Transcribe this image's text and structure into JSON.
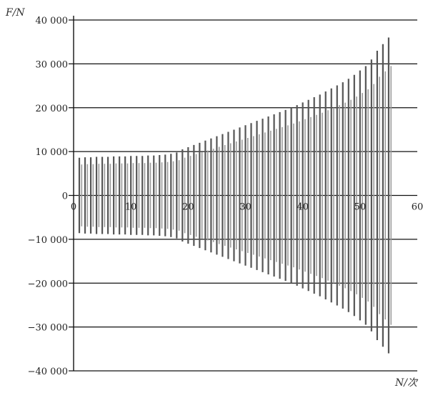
{
  "chart_data": {
    "type": "line",
    "xlabel": "N/次",
    "ylabel": "F/N",
    "xlim": [
      0,
      60
    ],
    "ylim": [
      -40000,
      40000
    ],
    "x_ticks": [
      0,
      10,
      20,
      30,
      40,
      50,
      60
    ],
    "x_tick_labels": [
      "0",
      "10",
      "20",
      "30",
      "40",
      "50",
      "60"
    ],
    "y_ticks": [
      40000,
      30000,
      20000,
      10000,
      0,
      -10000,
      -20000,
      -30000,
      -40000
    ],
    "y_tick_labels": [
      "40 000",
      "30 000",
      "20 000",
      "10 000",
      "0",
      "−10 000",
      "−20 000",
      "−30 000",
      "−40 000"
    ],
    "grid": "horizontal",
    "series": [
      {
        "cycles": [
          1,
          2,
          3,
          4,
          5,
          6,
          7,
          8,
          9,
          10,
          11,
          12,
          13,
          14,
          15,
          16,
          17,
          18,
          19,
          20,
          21,
          22,
          23,
          24,
          25,
          26,
          27,
          28,
          29,
          30,
          31,
          32,
          33,
          34,
          35,
          36,
          37,
          38,
          39,
          40,
          41,
          42,
          43,
          44,
          45,
          46,
          47,
          48,
          49,
          50,
          51,
          52,
          53,
          54,
          55
        ],
        "peak_positive": [
          8600,
          8700,
          8700,
          8800,
          8800,
          8800,
          8900,
          8900,
          8900,
          9000,
          9000,
          9000,
          9100,
          9100,
          9200,
          9300,
          9500,
          9800,
          10500,
          11000,
          11500,
          12000,
          12500,
          13000,
          13500,
          14000,
          14500,
          15000,
          15500,
          16000,
          16500,
          17000,
          17500,
          18000,
          18500,
          19000,
          19500,
          20000,
          20600,
          21200,
          21800,
          22400,
          23000,
          23700,
          24400,
          25100,
          25800,
          26600,
          27500,
          28500,
          29500,
          31000,
          33000,
          34500,
          36000
        ],
        "peak_negative": [
          -8600,
          -8700,
          -8700,
          -8800,
          -8800,
          -8800,
          -8900,
          -8900,
          -8900,
          -9000,
          -9000,
          -9000,
          -9100,
          -9100,
          -9200,
          -9300,
          -9500,
          -9800,
          -10500,
          -11000,
          -11500,
          -12000,
          -12500,
          -13000,
          -13500,
          -14000,
          -14500,
          -15000,
          -15500,
          -16000,
          -16500,
          -17000,
          -17500,
          -18000,
          -18500,
          -19000,
          -19500,
          -20000,
          -20600,
          -21200,
          -21800,
          -22400,
          -23000,
          -23700,
          -24400,
          -25100,
          -25800,
          -26600,
          -27500,
          -28500,
          -29500,
          -31000,
          -33000,
          -34500,
          -36000
        ]
      }
    ]
  }
}
